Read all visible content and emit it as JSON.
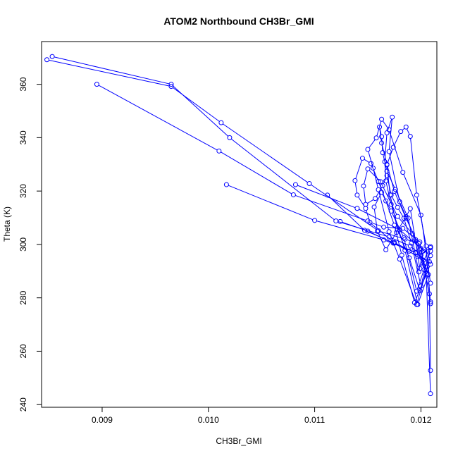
{
  "chart_data": {
    "type": "line",
    "title": "ATOM2 Northbound CH3Br_GMI",
    "xlabel": "CH3Br_GMI",
    "ylabel": "Theta (K)",
    "xlim": [
      0.00843,
      0.01215
    ],
    "ylim": [
      239,
      376
    ],
    "xticks": [
      0.009,
      0.01,
      0.011,
      0.012
    ],
    "xtick_labels": [
      "0.009",
      "0.010",
      "0.011",
      "0.012"
    ],
    "yticks": [
      240,
      260,
      280,
      300,
      320,
      340,
      360
    ],
    "ytick_labels": [
      "240",
      "260",
      "280",
      "300",
      "320",
      "340",
      "360"
    ],
    "grid": false,
    "legend": "none",
    "series_color": "#0000ff",
    "marker": "open-circle",
    "series": [
      {
        "x": [
          0.00848,
          0.00965,
          0.01012,
          0.01095,
          0.0116,
          0.01185,
          0.01198,
          0.01202,
          0.01198,
          0.01188,
          0.01176,
          0.01168,
          0.01164,
          0.01163,
          0.01161,
          0.01163,
          0.01168,
          0.01175,
          0.01186,
          0.012,
          0.01208,
          0.01209
        ],
        "y": [
          369.2,
          359.2,
          345.6,
          322.8,
          305.1,
          302.0,
          300.4,
          297.5,
          289.7,
          309.9,
          320.6,
          327.4,
          334.4,
          340.4,
          344.0,
          338.0,
          330.0,
          319.9,
          309.8,
          298.0,
          281.5,
          252.8
        ]
      },
      {
        "x": [
          0.00853,
          0.00965,
          0.0102,
          0.0112,
          0.0117,
          0.0119,
          0.012,
          0.01207,
          0.01197,
          0.01185,
          0.01172,
          0.01167,
          0.01166,
          0.01168,
          0.01173,
          0.0117,
          0.0118,
          0.01195,
          0.01205,
          0.01209
        ],
        "y": [
          370.4,
          360.0,
          340.0,
          308.8,
          302.8,
          299.4,
          296.0,
          288.7,
          277.5,
          297.8,
          315.0,
          323.8,
          331.0,
          341.8,
          347.7,
          334.8,
          316.0,
          301.8,
          289.0,
          244.1
        ]
      },
      {
        "x": [
          0.00895,
          0.0101,
          0.0108,
          0.0115,
          0.01175,
          0.01195,
          0.01208,
          0.01199,
          0.01189,
          0.01178,
          0.01171,
          0.01168,
          0.01174,
          0.01181,
          0.01186,
          0.0119,
          0.01196,
          0.01205,
          0.01209
        ],
        "y": [
          360.0,
          335.0,
          318.6,
          308.8,
          300.7,
          296.8,
          293.5,
          282.7,
          295.0,
          305.5,
          318.6,
          329.8,
          336.4,
          342.3,
          344.0,
          340.5,
          318.5,
          299.4,
          277.8
        ]
      },
      {
        "x": [
          0.01082,
          0.0114,
          0.0118,
          0.012,
          0.01209,
          0.01196,
          0.0118,
          0.0117,
          0.0116,
          0.01155,
          0.0115,
          0.01158,
          0.01163,
          0.0117,
          0.01183,
          0.012,
          0.01209
        ],
        "y": [
          322.4,
          313.5,
          305.5,
          298.5,
          295.8,
          277.5,
          294.5,
          304.8,
          320.5,
          328.6,
          335.6,
          339.9,
          346.9,
          343.0,
          327.0,
          311.0,
          285.5
        ]
      },
      {
        "x": [
          0.01017,
          0.011,
          0.01165,
          0.01195,
          0.01209,
          0.01194,
          0.01182,
          0.01175,
          0.01167,
          0.0116,
          0.01153,
          0.01145,
          0.01138,
          0.0114,
          0.01148,
          0.01152,
          0.01165,
          0.01183,
          0.01199,
          0.01209
        ],
        "y": [
          322.4,
          309.0,
          301.7,
          297.0,
          292.6,
          278.2,
          296.0,
          307.2,
          316.3,
          323.6,
          330.3,
          332.3,
          323.9,
          318.5,
          313.5,
          308.3,
          306.5,
          306.0,
          300.9,
          278.5
        ]
      },
      {
        "x": [
          0.01112,
          0.01147,
          0.01175,
          0.01197,
          0.01209,
          0.012,
          0.01191,
          0.01184,
          0.01178,
          0.01172,
          0.01168,
          0.01164,
          0.01157,
          0.01148,
          0.01146,
          0.0115,
          0.01162,
          0.01178,
          0.01192,
          0.01203,
          0.01209
        ],
        "y": [
          318.5,
          305.3,
          300.5,
          295.5,
          298.8,
          284.4,
          300.5,
          309.8,
          313.9,
          318.5,
          325.8,
          322.0,
          317.2,
          315.0,
          321.9,
          328.3,
          323.5,
          310.5,
          304.0,
          290.5,
          297.5
        ]
      },
      {
        "x": [
          0.01124,
          0.0115,
          0.01174,
          0.01189,
          0.01205,
          0.01196,
          0.01184,
          0.01172,
          0.01163,
          0.01156,
          0.01159,
          0.01167,
          0.01177,
          0.01186,
          0.0119,
          0.01199,
          0.01209
        ],
        "y": [
          308.6,
          305.0,
          300.5,
          297.5,
          293.0,
          282.5,
          302.5,
          312.5,
          319.5,
          314.0,
          305.0,
          298.0,
          304.5,
          310.4,
          313.4,
          291.0,
          299.2
        ]
      }
    ]
  }
}
